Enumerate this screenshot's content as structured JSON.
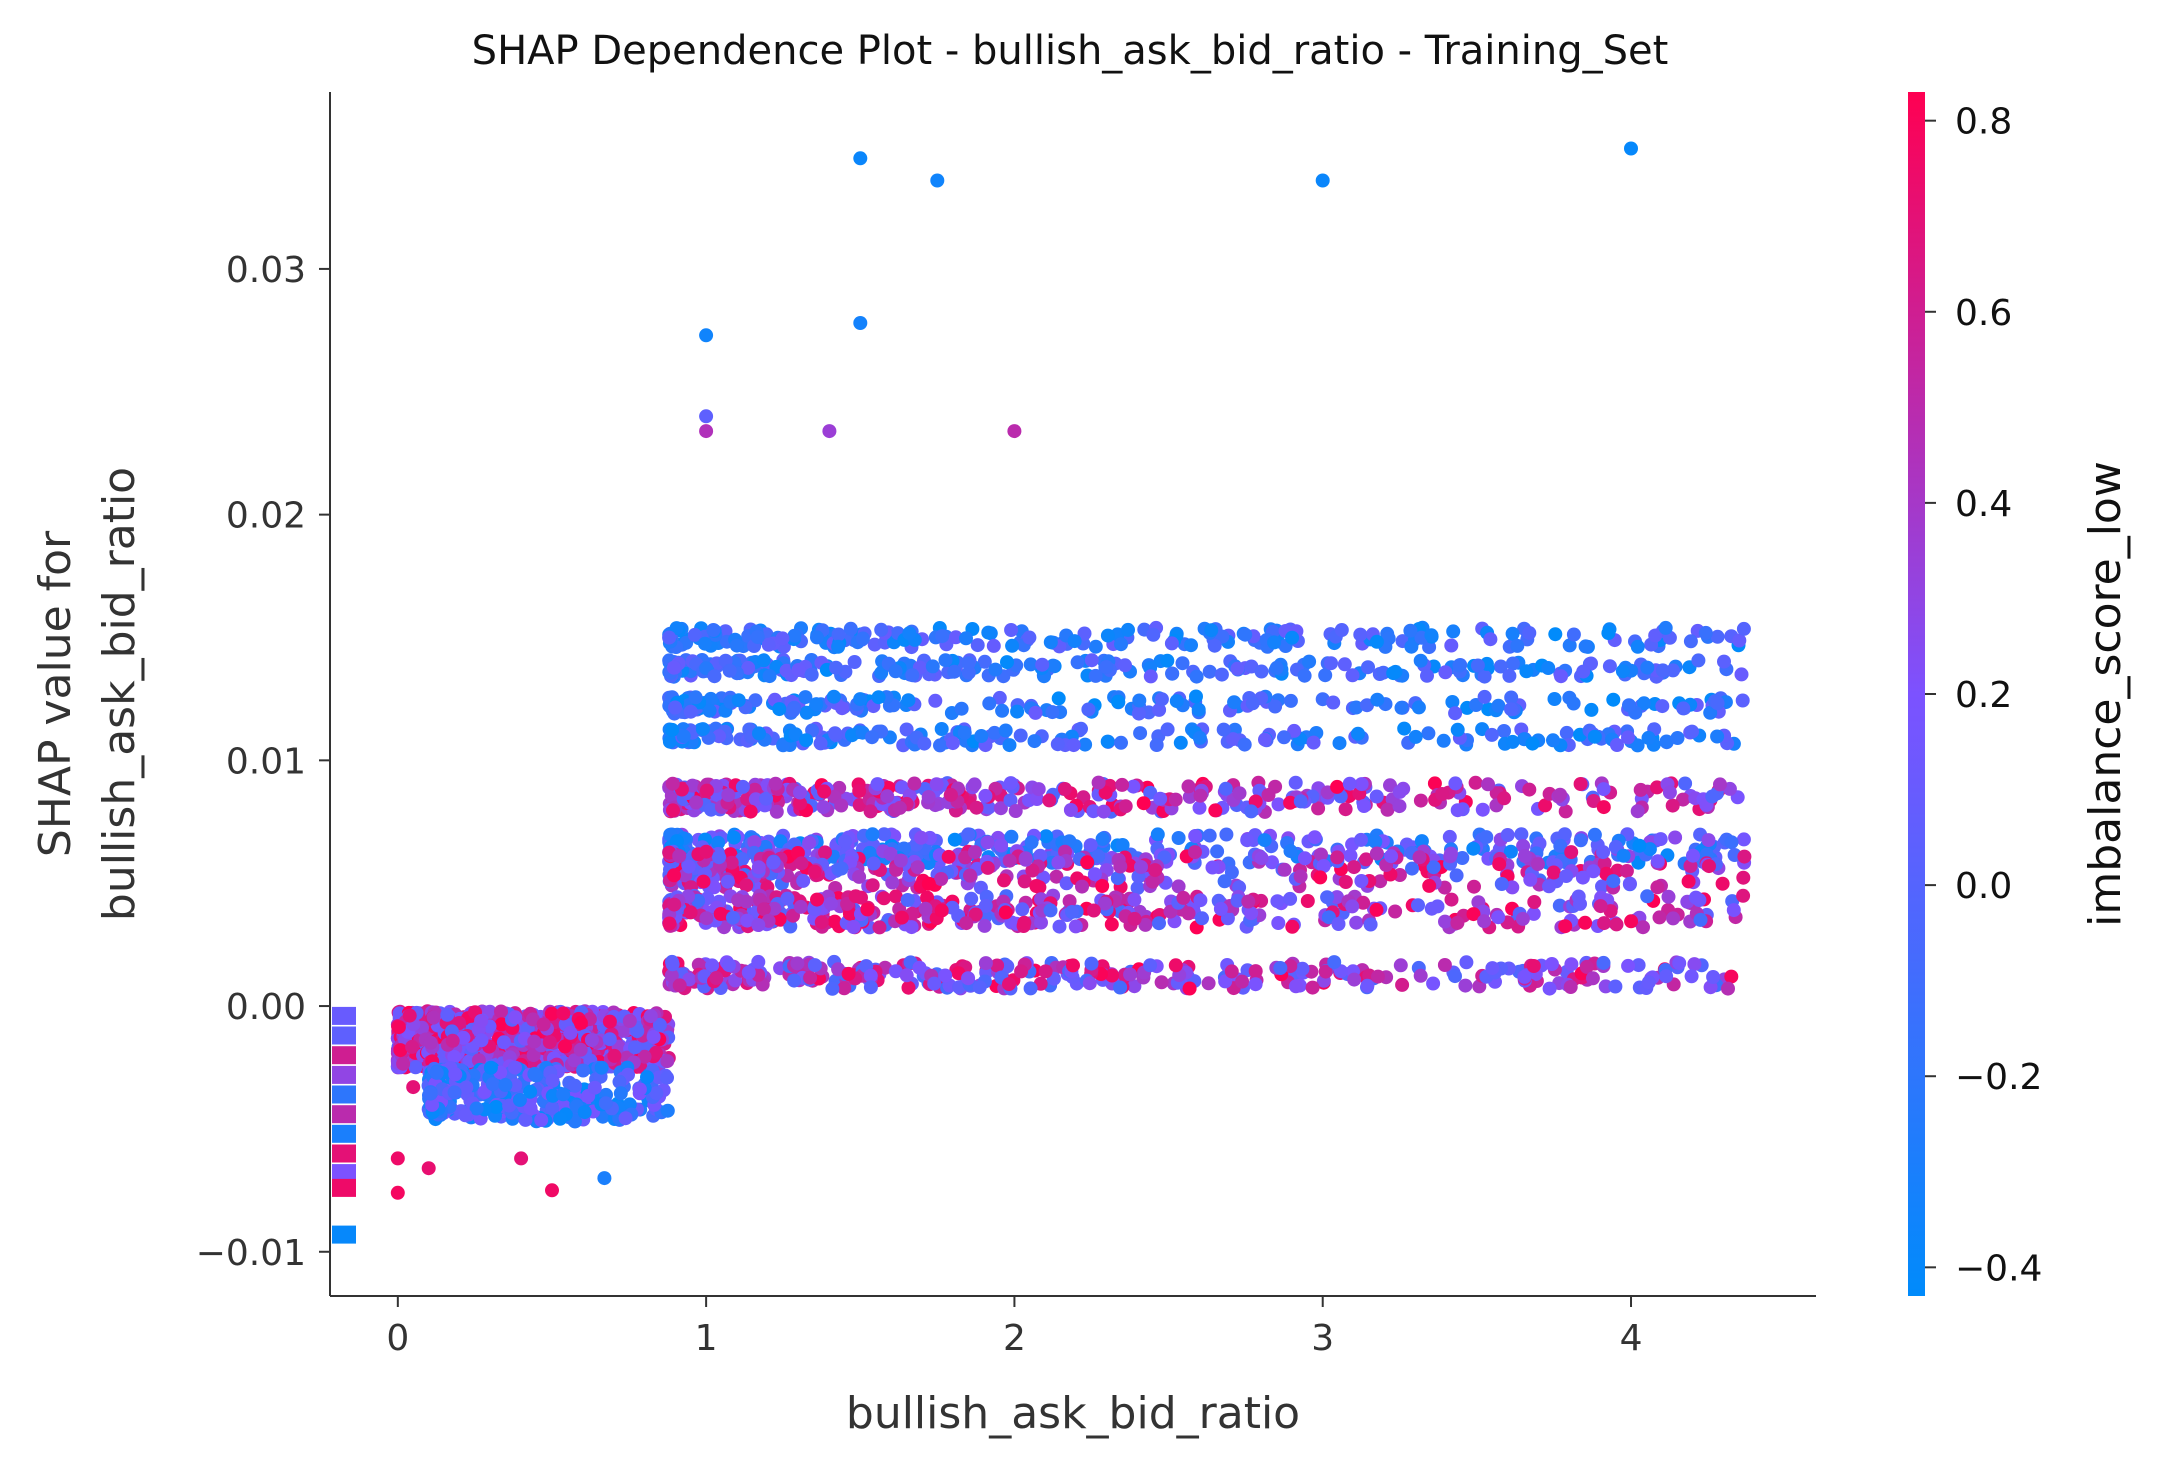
{
  "chart_data": {
    "type": "scatter",
    "title": "SHAP Dependence Plot - bullish_ask_bid_ratio - Training_Set",
    "xlabel": "bullish_ask_bid_ratio",
    "ylabel_lines": [
      "SHAP value for",
      "bullish_ask_bid_ratio"
    ],
    "colorbar_label": "imbalance_score_low",
    "xlim": [
      -0.22,
      4.6
    ],
    "ylim": [
      -0.0118,
      0.0372
    ],
    "x_ticks": [
      {
        "value": 0,
        "label": "0"
      },
      {
        "value": 1,
        "label": "1"
      },
      {
        "value": 2,
        "label": "2"
      },
      {
        "value": 3,
        "label": "3"
      },
      {
        "value": 4,
        "label": "4"
      }
    ],
    "y_ticks": [
      {
        "value": -0.01,
        "label": "−0.01"
      },
      {
        "value": 0.0,
        "label": "0.00"
      },
      {
        "value": 0.01,
        "label": "0.01"
      },
      {
        "value": 0.02,
        "label": "0.02"
      },
      {
        "value": 0.03,
        "label": "0.03"
      }
    ],
    "colorbar": {
      "range": [
        -0.43,
        0.83
      ],
      "low_color": "#008bfb",
      "mid_color": "#7c52ff",
      "high_color": "#ff0052",
      "ticks": [
        {
          "value": -0.4,
          "label": "−0.4"
        },
        {
          "value": -0.2,
          "label": "−0.2"
        },
        {
          "value": 0.0,
          "label": "0.0"
        },
        {
          "value": 0.2,
          "label": "0.2"
        },
        {
          "value": 0.4,
          "label": "0.4"
        },
        {
          "value": 0.6,
          "label": "0.6"
        },
        {
          "value": 0.8,
          "label": "0.8"
        }
      ]
    },
    "points": [
      {
        "x": 1.5,
        "y": 0.0345,
        "c": -0.38
      },
      {
        "x": 1.75,
        "y": 0.0336,
        "c": -0.35
      },
      {
        "x": 3.0,
        "y": 0.0336,
        "c": -0.38
      },
      {
        "x": 4.0,
        "y": 0.0349,
        "c": -0.4
      },
      {
        "x": 1.0,
        "y": 0.0273,
        "c": -0.35
      },
      {
        "x": 1.5,
        "y": 0.0278,
        "c": -0.33
      },
      {
        "x": 1.0,
        "y": 0.024,
        "c": 0.05
      },
      {
        "x": 1.0,
        "y": 0.0234,
        "c": 0.45
      },
      {
        "x": 1.4,
        "y": 0.0234,
        "c": 0.35
      },
      {
        "x": 2.0,
        "y": 0.0234,
        "c": 0.5
      },
      {
        "x": 0.0,
        "y": -0.0062,
        "c": 0.75
      },
      {
        "x": 0.0,
        "y": -0.0076,
        "c": 0.78
      },
      {
        "x": 0.1,
        "y": -0.0066,
        "c": 0.72
      },
      {
        "x": 0.4,
        "y": -0.0062,
        "c": 0.7
      },
      {
        "x": 0.5,
        "y": -0.0075,
        "c": 0.76
      },
      {
        "x": 0.67,
        "y": -0.007,
        "c": -0.3
      },
      {
        "x": 0.05,
        "y": -0.0033,
        "c": 0.7
      }
    ],
    "bands": [
      {
        "x": [
          0.0,
          0.88
        ],
        "y": [
          -0.0025,
          -0.0002
        ],
        "c": [
          0.0,
          0.83
        ],
        "n": 900
      },
      {
        "x": [
          0.1,
          0.88
        ],
        "y": [
          -0.0047,
          -0.0025
        ],
        "c": [
          -0.43,
          0.2
        ],
        "n": 300
      },
      {
        "x": [
          0.88,
          4.37
        ],
        "y": [
          0.0146,
          0.0154
        ],
        "c": [
          -0.43,
          0.1
        ],
        "n": 240
      },
      {
        "x": [
          0.88,
          4.37
        ],
        "y": [
          0.0134,
          0.0141
        ],
        "c": [
          -0.43,
          0.1
        ],
        "n": 240
      },
      {
        "x": [
          0.88,
          4.37
        ],
        "y": [
          0.0119,
          0.0126
        ],
        "c": [
          -0.43,
          0.1
        ],
        "n": 200
      },
      {
        "x": [
          0.88,
          4.37
        ],
        "y": [
          0.0106,
          0.0113
        ],
        "c": [
          -0.43,
          0.1
        ],
        "n": 200
      },
      {
        "x": [
          0.88,
          4.37
        ],
        "y": [
          0.0079,
          0.0091
        ],
        "c": [
          -0.05,
          0.83
        ],
        "n": 420
      },
      {
        "x": [
          0.88,
          4.37
        ],
        "y": [
          0.0058,
          0.007
        ],
        "c": [
          -0.43,
          0.3
        ],
        "n": 380
      },
      {
        "x": [
          0.88,
          4.37
        ],
        "y": [
          0.0048,
          0.0063
        ],
        "c": [
          -0.1,
          0.83
        ],
        "n": 380
      },
      {
        "x": [
          0.88,
          4.37
        ],
        "y": [
          0.0032,
          0.0045
        ],
        "c": [
          -0.1,
          0.83
        ],
        "n": 420
      },
      {
        "x": [
          0.88,
          4.37
        ],
        "y": [
          0.0007,
          0.0018
        ],
        "c": [
          -0.1,
          0.83
        ],
        "n": 360
      }
    ],
    "nan_markers": [
      {
        "y": -0.0004,
        "c": 0.1
      },
      {
        "y": -0.0012,
        "c": 0.05
      },
      {
        "y": -0.002,
        "c": 0.6
      },
      {
        "y": -0.0028,
        "c": 0.3
      },
      {
        "y": -0.0036,
        "c": -0.2
      },
      {
        "y": -0.0044,
        "c": 0.5
      },
      {
        "y": -0.0052,
        "c": -0.3
      },
      {
        "y": -0.006,
        "c": 0.7
      },
      {
        "y": -0.0068,
        "c": 0.2
      },
      {
        "y": -0.0074,
        "c": 0.75
      },
      {
        "y": -0.0093,
        "c": -0.4
      }
    ]
  }
}
